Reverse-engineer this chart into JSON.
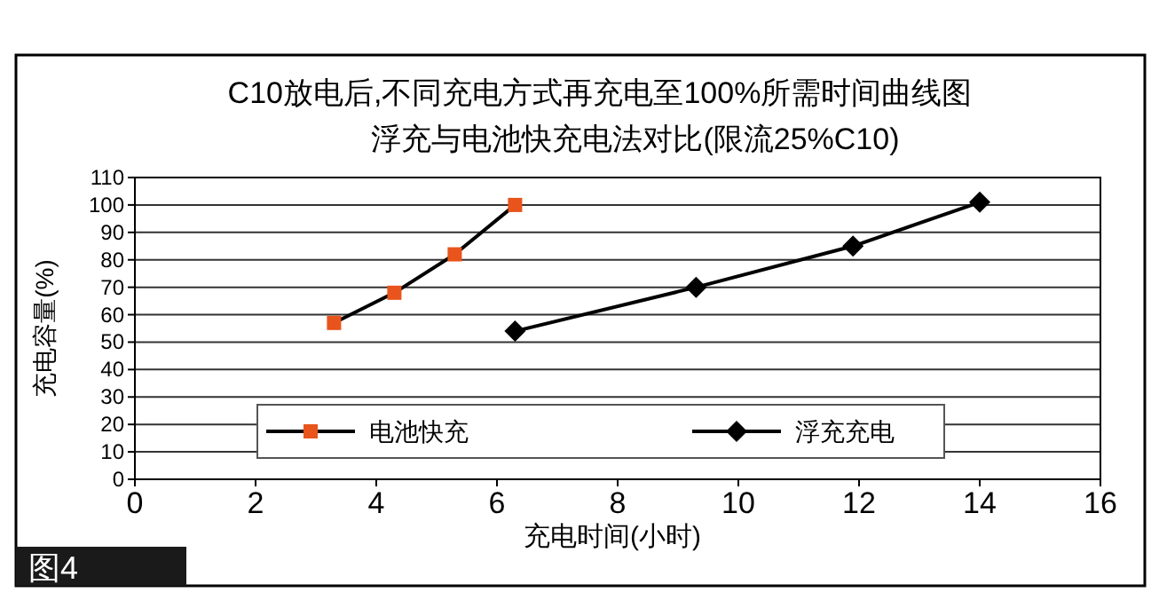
{
  "chart_data": {
    "type": "line",
    "title": "C10放电后,不同充电方式再充电至100%所需时间曲线图",
    "subtitle": "浮充与电池快充电法对比(限流25%C10)",
    "xlabel": "充电时间(小时)",
    "ylabel": "充电容量(%)",
    "annotations": [
      "图4"
    ],
    "series": [
      {
        "name": "电池快充",
        "color": "#e8541c",
        "marker": "square",
        "x": [
          3.3,
          4.3,
          5.3,
          6.3
        ],
        "values": [
          57,
          68,
          82,
          100
        ]
      },
      {
        "name": "浮充充电",
        "color": "#000000",
        "marker": "diamond",
        "x": [
          6.3,
          9.3,
          11.9,
          14
        ],
        "values": [
          54,
          70,
          85,
          101
        ]
      }
    ],
    "xlim": [
      0,
      16
    ],
    "xticks": [
      0,
      2,
      4,
      6,
      8,
      10,
      12,
      14,
      16
    ],
    "ylim": [
      0,
      110
    ],
    "yticks": [
      0,
      10,
      20,
      30,
      40,
      50,
      60,
      70,
      80,
      90,
      100,
      110
    ],
    "grid": "y",
    "legend": "bottom"
  }
}
